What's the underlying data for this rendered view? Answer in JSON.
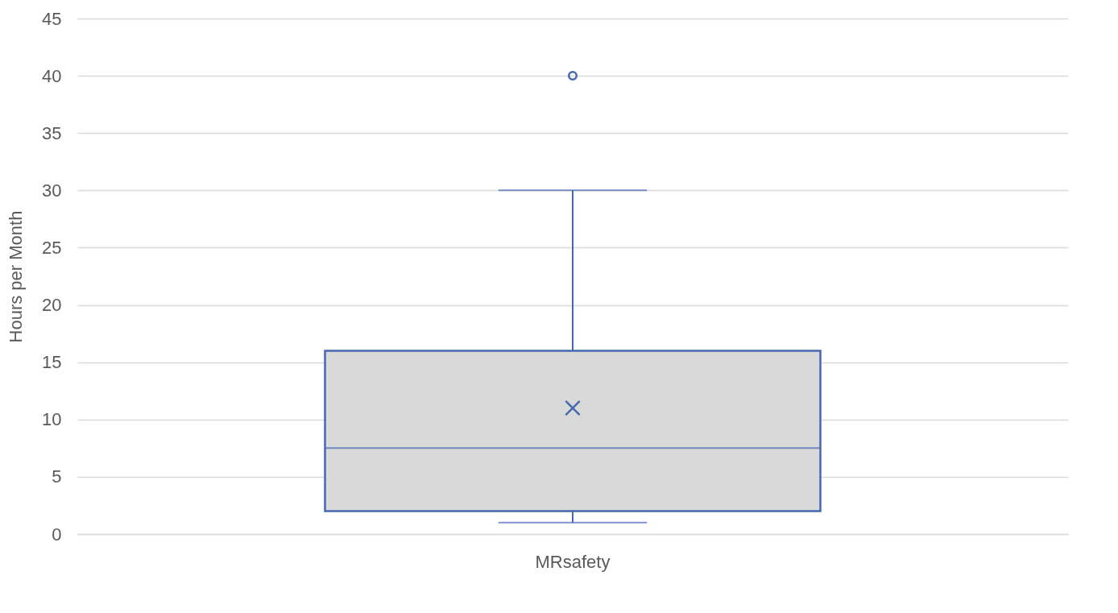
{
  "chart_data": {
    "type": "box",
    "ylabel": "Hours per Month",
    "categories": [
      "MRsafety"
    ],
    "series": [
      {
        "color": "#4668b0",
        "boxes": [
          {
            "low": 1,
            "q1": 2,
            "median": 7.5,
            "q3": 16,
            "high": 30,
            "mean": 11,
            "outliers": [
              40
            ]
          }
        ]
      }
    ],
    "ylim": [
      0,
      45
    ],
    "yticks": [
      0,
      5,
      10,
      15,
      20,
      25,
      30,
      35,
      40,
      45
    ],
    "grid": "y"
  }
}
